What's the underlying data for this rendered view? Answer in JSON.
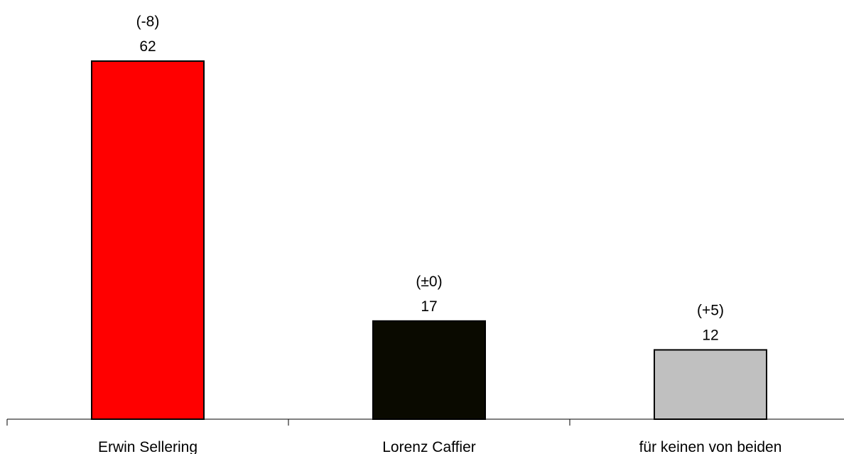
{
  "chart_data": {
    "type": "bar",
    "title": "",
    "xlabel": "",
    "ylabel": "",
    "ylim": [
      0,
      62
    ],
    "grid": false,
    "legend": "none",
    "categories": [
      "Erwin Sellering",
      "Lorenz Caffier",
      "für keinen von beiden"
    ],
    "values": [
      62,
      17,
      12
    ],
    "value_labels": [
      "62",
      "17",
      "12"
    ],
    "change_labels": [
      "(-8)",
      "(±0)",
      "(+5)"
    ],
    "colors": [
      "#ff0000",
      "#0a0a00",
      "#c0c0c0"
    ]
  }
}
